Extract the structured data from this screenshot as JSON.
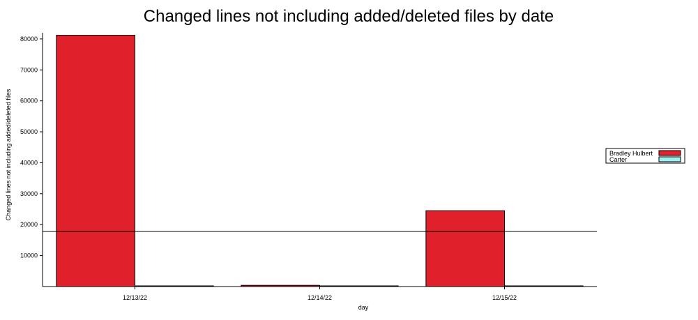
{
  "chart_data": {
    "type": "bar",
    "title": "Changed lines not including added/deleted files by date",
    "xlabel": "day",
    "ylabel": "Changed lines not including added/deleted files",
    "categories": [
      "12/13/22",
      "12/14/22",
      "12/15/22"
    ],
    "series": [
      {
        "name": "Bradley Hulbert",
        "values": [
          81200,
          400,
          24500
        ],
        "color": "#e0202a"
      },
      {
        "name": "Carter",
        "values": [
          0,
          200,
          200
        ],
        "color": "#a0f0f0"
      }
    ],
    "ylim": [
      0,
      82000
    ],
    "yticks": [
      10000,
      20000,
      30000,
      40000,
      50000,
      60000,
      70000,
      80000
    ],
    "reference_line": 17800,
    "grid": false,
    "legend_position": "right"
  }
}
